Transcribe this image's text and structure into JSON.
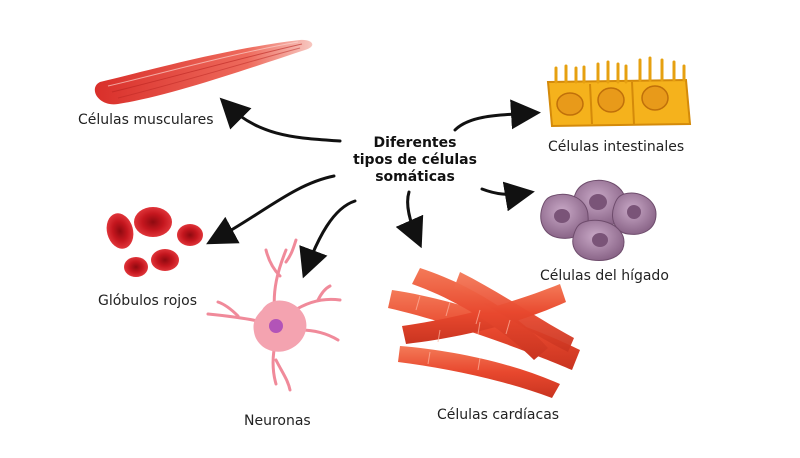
{
  "title": {
    "line1": "Diferentes",
    "line2": "tipos de células",
    "line3": "somáticas"
  },
  "cells": {
    "muscle": "Células musculares",
    "intestinal": "Células intestinales",
    "liver": "Células del hígado",
    "red_blood": "Glóbulos rojos",
    "neurons": "Neuronas",
    "cardiac": "Células cardíacas"
  },
  "colors": {
    "muscle": "#e8453c",
    "intestinal": "#f5b21c",
    "liver": "#9e7b9b",
    "red_blood": "#c8141e",
    "neuron": "#f08a9a",
    "cardiac": "#ea5a3c",
    "arrow": "#111111"
  }
}
